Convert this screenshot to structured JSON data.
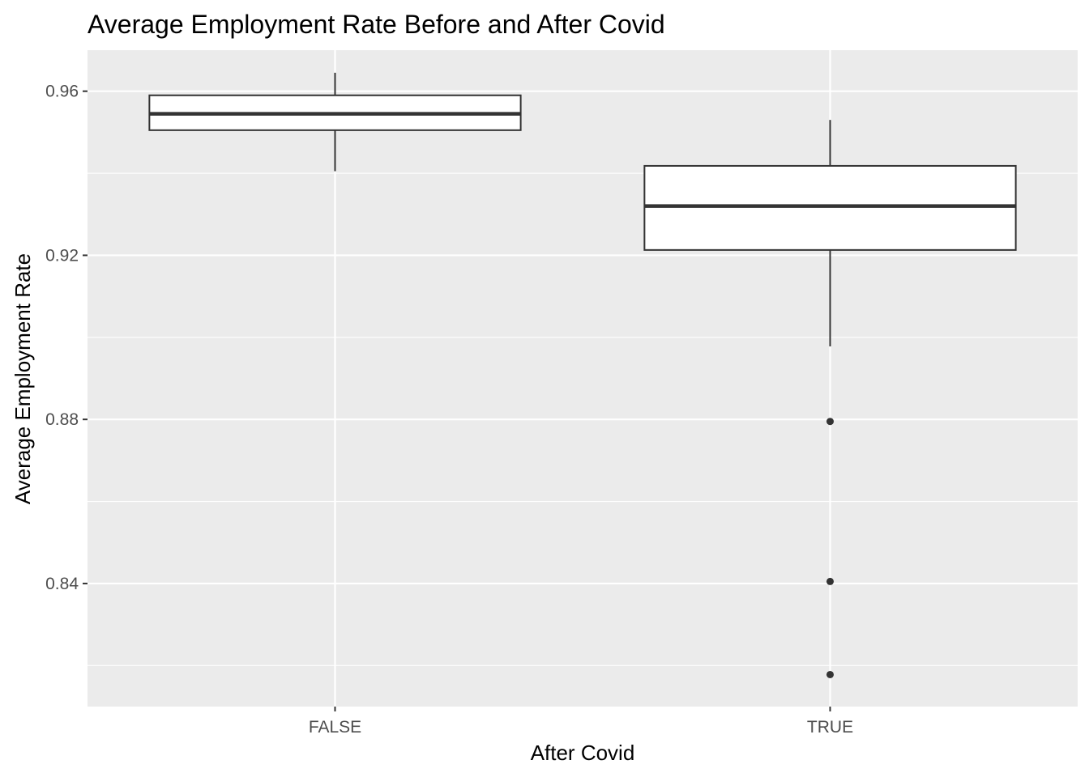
{
  "chart_data": {
    "type": "boxplot",
    "title": "Average Employment Rate Before and After Covid",
    "xlabel": "After Covid",
    "ylabel": "Average Employment Rate",
    "categories": [
      "FALSE",
      "TRUE"
    ],
    "ylim": [
      0.81,
      0.97
    ],
    "y_ticks": [
      0.84,
      0.88,
      0.92,
      0.96
    ],
    "y_tick_labels": [
      "0.84",
      "0.88",
      "0.92",
      "0.96"
    ],
    "grid": true,
    "boxes": [
      {
        "category": "FALSE",
        "whisker_low": 0.9405,
        "q1": 0.9505,
        "median": 0.9545,
        "q3": 0.959,
        "whisker_high": 0.9645,
        "outliers": []
      },
      {
        "category": "TRUE",
        "whisker_low": 0.8978,
        "q1": 0.9213,
        "median": 0.932,
        "q3": 0.9418,
        "whisker_high": 0.953,
        "outliers": [
          0.8795,
          0.8405,
          0.8178
        ]
      }
    ],
    "colors": {
      "panel_background": "#ebebeb",
      "grid": "#ffffff",
      "box_fill": "#ffffff",
      "box_line": "#333333",
      "tick_text": "#4d4d4d"
    }
  }
}
